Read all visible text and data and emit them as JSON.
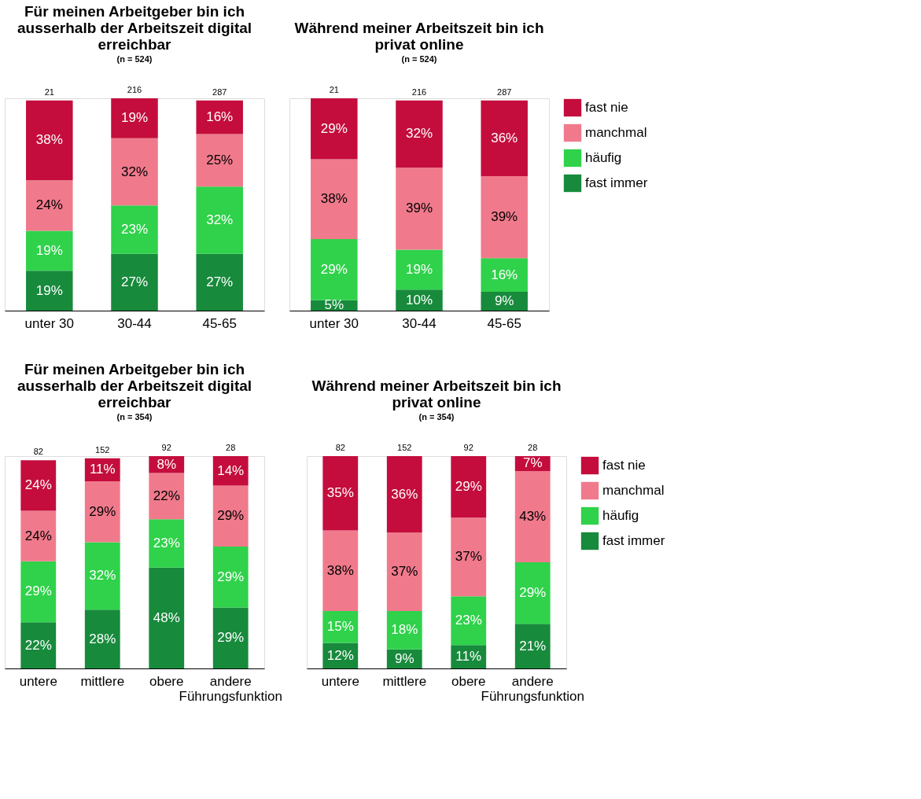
{
  "chart_data": [
    {
      "type": "bar",
      "stacked": true,
      "title": "Für meinen Arbeitgeber bin ich ausserhalb der Arbeitszeit digital erreichbar",
      "subtitle": "(n = 524)",
      "categories": [
        "unter 30",
        "30-44",
        "45-65"
      ],
      "annotations": [
        "21",
        "216",
        "287"
      ],
      "legend": false,
      "grid": false,
      "series": [
        {
          "color": "#178a3c",
          "values": [
            19,
            27,
            27
          ],
          "value_labels": [
            "19%",
            "27%",
            "27%"
          ]
        },
        {
          "color": "#2fd24a",
          "values": [
            19,
            23,
            32
          ],
          "value_labels": [
            "19%",
            "23%",
            "32%"
          ]
        },
        {
          "color": "#f07a8c",
          "values": [
            24,
            32,
            25
          ],
          "value_labels": [
            "24%",
            "32%",
            "25%"
          ]
        },
        {
          "color": "#c40d3c",
          "values": [
            38,
            19,
            16
          ],
          "value_labels": [
            "38%",
            "19%",
            "16%"
          ]
        }
      ]
    },
    {
      "type": "bar",
      "stacked": true,
      "title": "Während meiner Arbeitszeit bin ich privat online",
      "subtitle": "(n = 524)",
      "categories": [
        "unter 30",
        "30-44",
        "45-65"
      ],
      "annotations": [
        "21",
        "216",
        "287"
      ],
      "legend": "right",
      "grid": false,
      "series": [
        {
          "name": "fast immer",
          "color": "#178a3c",
          "values": [
            5,
            10,
            9
          ],
          "value_labels": [
            "5%",
            "10%",
            "9%"
          ]
        },
        {
          "name": "häufig",
          "color": "#2fd24a",
          "values": [
            29,
            19,
            16
          ],
          "value_labels": [
            "29%",
            "19%",
            "16%"
          ]
        },
        {
          "name": "manchmal",
          "color": "#f07a8c",
          "values": [
            38,
            39,
            39
          ],
          "value_labels": [
            "38%",
            "39%",
            "39%"
          ]
        },
        {
          "name": "fast nie",
          "color": "#c40d3c",
          "values": [
            29,
            32,
            36
          ],
          "value_labels": [
            "29%",
            "32%",
            "36%"
          ]
        }
      ]
    },
    {
      "type": "bar",
      "stacked": true,
      "title": "Für meinen Arbeitgeber bin ich ausserhalb der Arbeitszeit digital erreichbar",
      "subtitle": "(n = 354)",
      "categories": [
        "untere",
        "mittlere",
        "obere",
        "andere Führungsfunktion"
      ],
      "annotations": [
        "82",
        "152",
        "92",
        "28"
      ],
      "legend": false,
      "grid": false,
      "series": [
        {
          "color": "#178a3c",
          "values": [
            22,
            28,
            48,
            29
          ],
          "value_labels": [
            "22%",
            "28%",
            "48%",
            "29%"
          ]
        },
        {
          "color": "#2fd24a",
          "values": [
            29,
            32,
            23,
            29
          ],
          "value_labels": [
            "29%",
            "32%",
            "23%",
            "29%"
          ]
        },
        {
          "color": "#f07a8c",
          "values": [
            24,
            29,
            22,
            29
          ],
          "value_labels": [
            "24%",
            "29%",
            "22%",
            "29%"
          ]
        },
        {
          "color": "#c40d3c",
          "values": [
            24,
            11,
            8,
            14
          ],
          "value_labels": [
            "24%",
            "11%",
            "8%",
            "14%"
          ]
        }
      ]
    },
    {
      "type": "bar",
      "stacked": true,
      "title": "Während meiner Arbeitszeit bin ich privat online",
      "subtitle": "(n = 354)",
      "categories": [
        "untere",
        "mittlere",
        "obere",
        "andere Führungsfunktion"
      ],
      "annotations": [
        "82",
        "152",
        "92",
        "28"
      ],
      "legend": "right",
      "grid": false,
      "series": [
        {
          "name": "fast immer",
          "color": "#178a3c",
          "values": [
            12,
            9,
            11,
            21
          ],
          "value_labels": [
            "12%",
            "9%",
            "11%",
            "21%"
          ]
        },
        {
          "name": "häufig",
          "color": "#2fd24a",
          "values": [
            15,
            18,
            23,
            29
          ],
          "value_labels": [
            "15%",
            "18%",
            "23%",
            "29%"
          ]
        },
        {
          "name": "manchmal",
          "color": "#f07a8c",
          "values": [
            38,
            37,
            37,
            43
          ],
          "value_labels": [
            "38%",
            "37%",
            "37%",
            "43%"
          ]
        },
        {
          "name": "fast nie",
          "color": "#c40d3c",
          "values": [
            35,
            36,
            29,
            7
          ],
          "value_labels": [
            "35%",
            "36%",
            "29%",
            "7%"
          ]
        }
      ]
    }
  ]
}
